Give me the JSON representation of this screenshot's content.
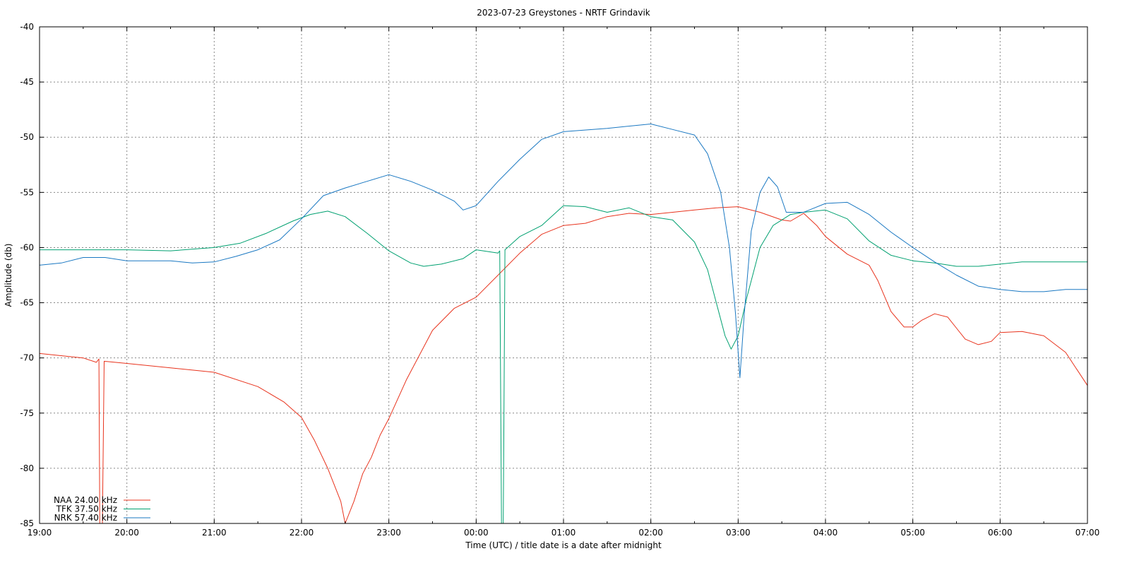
{
  "chart_data": {
    "type": "line",
    "title": "2023-07-23 Greystones - NRTF Grindavik",
    "xlabel": "Time (UTC) / title date is a date after midnight",
    "ylabel": "Amplitude (db)",
    "x_unit": "hours (UTC)",
    "xlim": [
      19,
      31
    ],
    "ylim": [
      -85,
      -40
    ],
    "x_ticks": [
      19,
      20,
      21,
      22,
      23,
      24,
      25,
      26,
      27,
      28,
      29,
      30,
      31
    ],
    "x_tick_labels": [
      "19:00",
      "20:00",
      "21:00",
      "22:00",
      "23:00",
      "00:00",
      "01:00",
      "02:00",
      "03:00",
      "04:00",
      "05:00",
      "06:00",
      "07:00"
    ],
    "y_ticks": [
      -40,
      -45,
      -50,
      -55,
      -60,
      -65,
      -70,
      -75,
      -80,
      -85
    ],
    "y_tick_labels": [
      "-40",
      "-45",
      "-50",
      "-55",
      "-60",
      "-65",
      "-70",
      "-75",
      "-80",
      "-85"
    ],
    "grid": true,
    "legend_position": "bottom-left",
    "series": [
      {
        "name": "NAA 24.00 kHz",
        "color": "#e8331d",
        "points": [
          [
            19.0,
            -69.6
          ],
          [
            19.5,
            -70.0
          ],
          [
            19.65,
            -70.4
          ],
          [
            19.68,
            -70.1
          ],
          [
            19.69,
            -85.0
          ],
          [
            19.72,
            -85.0
          ],
          [
            19.74,
            -70.3
          ],
          [
            20.0,
            -70.5
          ],
          [
            20.5,
            -70.9
          ],
          [
            21.0,
            -71.3
          ],
          [
            21.5,
            -72.6
          ],
          [
            21.8,
            -74.0
          ],
          [
            22.0,
            -75.4
          ],
          [
            22.15,
            -77.5
          ],
          [
            22.3,
            -80.0
          ],
          [
            22.45,
            -83.0
          ],
          [
            22.5,
            -85.0
          ],
          [
            22.6,
            -83.0
          ],
          [
            22.7,
            -80.5
          ],
          [
            22.8,
            -79.0
          ],
          [
            22.9,
            -77.0
          ],
          [
            23.0,
            -75.5
          ],
          [
            23.2,
            -72.0
          ],
          [
            23.5,
            -67.5
          ],
          [
            23.75,
            -65.5
          ],
          [
            24.0,
            -64.5
          ],
          [
            24.25,
            -62.5
          ],
          [
            24.5,
            -60.5
          ],
          [
            24.75,
            -58.8
          ],
          [
            25.0,
            -58.0
          ],
          [
            25.25,
            -57.8
          ],
          [
            25.5,
            -57.2
          ],
          [
            25.75,
            -56.9
          ],
          [
            26.0,
            -57.0
          ],
          [
            26.25,
            -56.8
          ],
          [
            26.5,
            -56.6
          ],
          [
            26.75,
            -56.4
          ],
          [
            27.0,
            -56.3
          ],
          [
            27.25,
            -56.8
          ],
          [
            27.5,
            -57.5
          ],
          [
            27.6,
            -57.6
          ],
          [
            27.75,
            -56.9
          ],
          [
            27.9,
            -58.0
          ],
          [
            28.0,
            -59.0
          ],
          [
            28.25,
            -60.6
          ],
          [
            28.5,
            -61.6
          ],
          [
            28.6,
            -63.0
          ],
          [
            28.75,
            -65.8
          ],
          [
            28.9,
            -67.2
          ],
          [
            29.0,
            -67.2
          ],
          [
            29.1,
            -66.6
          ],
          [
            29.25,
            -66.0
          ],
          [
            29.4,
            -66.3
          ],
          [
            29.5,
            -67.3
          ],
          [
            29.6,
            -68.3
          ],
          [
            29.75,
            -68.8
          ],
          [
            29.9,
            -68.5
          ],
          [
            30.0,
            -67.7
          ],
          [
            30.25,
            -67.6
          ],
          [
            30.5,
            -68.0
          ],
          [
            30.75,
            -69.5
          ],
          [
            31.0,
            -72.5
          ]
        ]
      },
      {
        "name": "TFK 37.50 kHz",
        "color": "#00a070",
        "points": [
          [
            19.0,
            -60.2
          ],
          [
            19.5,
            -60.2
          ],
          [
            20.0,
            -60.2
          ],
          [
            20.5,
            -60.3
          ],
          [
            21.0,
            -60.0
          ],
          [
            21.3,
            -59.6
          ],
          [
            21.6,
            -58.7
          ],
          [
            21.9,
            -57.6
          ],
          [
            22.1,
            -57.0
          ],
          [
            22.3,
            -56.7
          ],
          [
            22.5,
            -57.2
          ],
          [
            22.75,
            -58.7
          ],
          [
            23.0,
            -60.3
          ],
          [
            23.25,
            -61.4
          ],
          [
            23.4,
            -61.7
          ],
          [
            23.6,
            -61.5
          ],
          [
            23.85,
            -61.0
          ],
          [
            24.0,
            -60.2
          ],
          [
            24.25,
            -60.5
          ],
          [
            24.27,
            -60.3
          ],
          [
            24.29,
            -85.0
          ],
          [
            24.31,
            -85.0
          ],
          [
            24.33,
            -60.2
          ],
          [
            24.5,
            -59.0
          ],
          [
            24.75,
            -58.0
          ],
          [
            25.0,
            -56.2
          ],
          [
            25.25,
            -56.3
          ],
          [
            25.5,
            -56.8
          ],
          [
            25.75,
            -56.4
          ],
          [
            26.0,
            -57.2
          ],
          [
            26.25,
            -57.5
          ],
          [
            26.5,
            -59.5
          ],
          [
            26.65,
            -62.0
          ],
          [
            26.75,
            -65.0
          ],
          [
            26.85,
            -68.0
          ],
          [
            26.92,
            -69.2
          ],
          [
            27.0,
            -68.0
          ],
          [
            27.1,
            -64.5
          ],
          [
            27.25,
            -60.0
          ],
          [
            27.4,
            -58.0
          ],
          [
            27.6,
            -57.0
          ],
          [
            27.75,
            -56.8
          ],
          [
            28.0,
            -56.6
          ],
          [
            28.25,
            -57.4
          ],
          [
            28.5,
            -59.4
          ],
          [
            28.75,
            -60.7
          ],
          [
            29.0,
            -61.2
          ],
          [
            29.25,
            -61.4
          ],
          [
            29.5,
            -61.7
          ],
          [
            29.75,
            -61.7
          ],
          [
            30.0,
            -61.5
          ],
          [
            30.25,
            -61.3
          ],
          [
            30.5,
            -61.3
          ],
          [
            31.0,
            -61.3
          ]
        ]
      },
      {
        "name": "NRK 57.40 kHz",
        "color": "#1a78c2",
        "points": [
          [
            19.0,
            -61.6
          ],
          [
            19.25,
            -61.4
          ],
          [
            19.5,
            -60.9
          ],
          [
            19.75,
            -60.9
          ],
          [
            20.0,
            -61.2
          ],
          [
            20.5,
            -61.2
          ],
          [
            20.75,
            -61.4
          ],
          [
            21.0,
            -61.3
          ],
          [
            21.25,
            -60.8
          ],
          [
            21.5,
            -60.2
          ],
          [
            21.75,
            -59.3
          ],
          [
            22.0,
            -57.4
          ],
          [
            22.25,
            -55.3
          ],
          [
            22.5,
            -54.6
          ],
          [
            22.75,
            -54.0
          ],
          [
            23.0,
            -53.4
          ],
          [
            23.25,
            -54.0
          ],
          [
            23.5,
            -54.8
          ],
          [
            23.75,
            -55.8
          ],
          [
            23.85,
            -56.6
          ],
          [
            24.0,
            -56.2
          ],
          [
            24.25,
            -54.0
          ],
          [
            24.5,
            -52.0
          ],
          [
            24.75,
            -50.2
          ],
          [
            25.0,
            -49.5
          ],
          [
            25.5,
            -49.2
          ],
          [
            26.0,
            -48.8
          ],
          [
            26.25,
            -49.3
          ],
          [
            26.5,
            -49.8
          ],
          [
            26.65,
            -51.5
          ],
          [
            26.8,
            -55.0
          ],
          [
            26.9,
            -60.0
          ],
          [
            26.97,
            -66.0
          ],
          [
            27.02,
            -71.8
          ],
          [
            27.07,
            -66.0
          ],
          [
            27.15,
            -58.5
          ],
          [
            27.25,
            -55.0
          ],
          [
            27.35,
            -53.6
          ],
          [
            27.45,
            -54.5
          ],
          [
            27.55,
            -56.8
          ],
          [
            27.75,
            -56.8
          ],
          [
            28.0,
            -56.0
          ],
          [
            28.25,
            -55.9
          ],
          [
            28.5,
            -57.0
          ],
          [
            28.75,
            -58.6
          ],
          [
            29.0,
            -60.0
          ],
          [
            29.25,
            -61.3
          ],
          [
            29.5,
            -62.5
          ],
          [
            29.75,
            -63.5
          ],
          [
            30.0,
            -63.8
          ],
          [
            30.25,
            -64.0
          ],
          [
            30.5,
            -64.0
          ],
          [
            30.75,
            -63.8
          ],
          [
            31.0,
            -63.8
          ]
        ]
      }
    ]
  }
}
